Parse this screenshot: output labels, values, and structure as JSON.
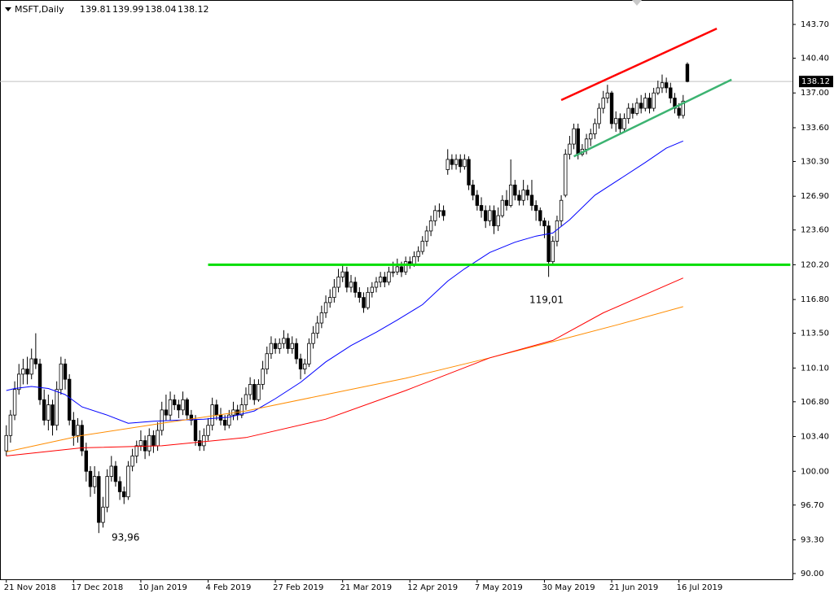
{
  "chart_data": {
    "type": "candlestick",
    "title": "MSFT,Daily",
    "xlim": [
      -1.5,
      187
    ],
    "ylim": [
      89.44,
      146.09
    ],
    "xticks": [
      {
        "value": 0,
        "label": "21 Nov 2018"
      },
      {
        "value": 16,
        "label": "17 Dec 2018"
      },
      {
        "value": 32,
        "label": "10 Jan 2019"
      },
      {
        "value": 48,
        "label": "4 Feb 2019"
      },
      {
        "value": 64,
        "label": "27 Feb 2019"
      },
      {
        "value": 80,
        "label": "21 Mar 2019"
      },
      {
        "value": 96,
        "label": "12 Apr 2019"
      },
      {
        "value": 112,
        "label": "7 May 2019"
      },
      {
        "value": 128,
        "label": "30 May 2019"
      },
      {
        "value": 144,
        "label": "21 Jun 2019"
      },
      {
        "value": 160,
        "label": "16 Jul 2019"
      }
    ],
    "yticks": [
      {
        "value": 90,
        "label": "90.00"
      },
      {
        "value": 93.3,
        "label": "93.30"
      },
      {
        "value": 96.7,
        "label": "96.70"
      },
      {
        "value": 100,
        "label": "100.00"
      },
      {
        "value": 103.4,
        "label": "103.40"
      },
      {
        "value": 106.8,
        "label": "106.80"
      },
      {
        "value": 110.1,
        "label": "110.10"
      },
      {
        "value": 113.5,
        "label": "113.50"
      },
      {
        "value": 116.8,
        "label": "116.80"
      },
      {
        "value": 120.2,
        "label": "120.20"
      },
      {
        "value": 123.6,
        "label": "123.60"
      },
      {
        "value": 126.9,
        "label": "126.90"
      },
      {
        "value": 130.3,
        "label": "130.30"
      },
      {
        "value": 133.6,
        "label": "133.60"
      },
      {
        "value": 137,
        "label": "137.00"
      },
      {
        "value": 140.4,
        "label": "140.40"
      },
      {
        "value": 143.7,
        "label": "143.70"
      }
    ],
    "up_color": "#ffffff",
    "down_color": "#000000",
    "wick_color": "#000000",
    "ohlc": [
      [
        102,
        104.5,
        101.5,
        103.5
      ],
      [
        103.5,
        106,
        102.8,
        105.5
      ],
      [
        105.5,
        108.8,
        105,
        108
      ],
      [
        108,
        110.5,
        107.5,
        109.5
      ],
      [
        109.5,
        111,
        108.5,
        110
      ],
      [
        110,
        111.2,
        108.5,
        109.5
      ],
      [
        109.5,
        112,
        109,
        111
      ],
      [
        111,
        113.5,
        110,
        110.5
      ],
      [
        110.5,
        111,
        106.5,
        107
      ],
      [
        107,
        108,
        104.5,
        105
      ],
      [
        105,
        107.5,
        104,
        106.5
      ],
      [
        106.5,
        107,
        103.5,
        104.5
      ],
      [
        104.5,
        108.8,
        104,
        108
      ],
      [
        108,
        111.2,
        107.5,
        110.5
      ],
      [
        110.5,
        111,
        108,
        109
      ],
      [
        109,
        109.5,
        104.5,
        105
      ],
      [
        105,
        105.8,
        102.5,
        103.5
      ],
      [
        103.5,
        105.2,
        102.8,
        104.5
      ],
      [
        104.5,
        105,
        101.5,
        102
      ],
      [
        102,
        102.8,
        99,
        100
      ],
      [
        100,
        100.5,
        97.5,
        98.5
      ],
      [
        98.5,
        100.5,
        97.8,
        99.5
      ],
      [
        99.5,
        100,
        93.96,
        95
      ],
      [
        95,
        97.5,
        94.5,
        96.5
      ],
      [
        96.5,
        100.2,
        96,
        99.5
      ],
      [
        99.5,
        101.5,
        99,
        100.5
      ],
      [
        100.5,
        101,
        98.5,
        99
      ],
      [
        99,
        99.5,
        97.2,
        98
      ],
      [
        98,
        98.5,
        96.8,
        97.5
      ],
      [
        97.5,
        101,
        97.2,
        100.5
      ],
      [
        100.5,
        102.2,
        100,
        101.5
      ],
      [
        101.5,
        103,
        100.8,
        102.5
      ],
      [
        102.5,
        104,
        102,
        103
      ],
      [
        103,
        103.5,
        101.2,
        102
      ],
      [
        102,
        104.2,
        101.5,
        103.5
      ],
      [
        103.5,
        104,
        101.8,
        102.5
      ],
      [
        102.5,
        104.8,
        102,
        104
      ],
      [
        104,
        106.8,
        103.5,
        106
      ],
      [
        106,
        107.5,
        105,
        105.5
      ],
      [
        105.5,
        107.8,
        105,
        107
      ],
      [
        107,
        107.5,
        106,
        106.5
      ],
      [
        106.5,
        107,
        105.2,
        106
      ],
      [
        106,
        107.8,
        105.5,
        107
      ],
      [
        107,
        107.2,
        105,
        105.5
      ],
      [
        105.5,
        106,
        104.5,
        105
      ],
      [
        105,
        105.5,
        102.5,
        103
      ],
      [
        103,
        104,
        102,
        102.5
      ],
      [
        102.5,
        104.2,
        102,
        103.5
      ],
      [
        103.5,
        105.2,
        103,
        104.5
      ],
      [
        104.5,
        107.2,
        104,
        106.5
      ],
      [
        106.5,
        107,
        105,
        105.5
      ],
      [
        105.5,
        106.2,
        104.5,
        105
      ],
      [
        105,
        105.5,
        104,
        104.5
      ],
      [
        104.5,
        106,
        104.2,
        105.5
      ],
      [
        105.5,
        106.8,
        105,
        106
      ],
      [
        106,
        106.5,
        105,
        105.5
      ],
      [
        105.5,
        107.2,
        105.2,
        106.5
      ],
      [
        106.5,
        108.2,
        106,
        107.5
      ],
      [
        107.5,
        109.2,
        107,
        108.5
      ],
      [
        108.5,
        109,
        106.5,
        107
      ],
      [
        107,
        109,
        106.8,
        108.5
      ],
      [
        108.5,
        110.8,
        108,
        110
      ],
      [
        110,
        112.2,
        109.5,
        111.5
      ],
      [
        111.5,
        113.2,
        111,
        112.5
      ],
      [
        112.5,
        113,
        111.5,
        112
      ],
      [
        112,
        113,
        111.5,
        112.5
      ],
      [
        112.5,
        113.8,
        112,
        113
      ],
      [
        113,
        113.5,
        111.5,
        112
      ],
      [
        112,
        113.2,
        111.5,
        112.5
      ],
      [
        112.5,
        113,
        110.5,
        111
      ],
      [
        111,
        111.5,
        109,
        110
      ],
      [
        110,
        111,
        109.5,
        110.5
      ],
      [
        110.5,
        113,
        110.2,
        112.5
      ],
      [
        112.5,
        114.2,
        112,
        113.5
      ],
      [
        113.5,
        115.2,
        113,
        114.5
      ],
      [
        114.5,
        116.2,
        114,
        115.5
      ],
      [
        115.5,
        117.2,
        115,
        116.5
      ],
      [
        116.5,
        117.8,
        116,
        117
      ],
      [
        117,
        118.8,
        116.5,
        118
      ],
      [
        118,
        119.8,
        117.5,
        119
      ],
      [
        119,
        120.2,
        118.5,
        119.5
      ],
      [
        119.5,
        120,
        117.5,
        118
      ],
      [
        118,
        119.2,
        117.5,
        118.5
      ],
      [
        118.5,
        119,
        117,
        117.5
      ],
      [
        117.5,
        118,
        116.5,
        117
      ],
      [
        117,
        117.5,
        115.5,
        116
      ],
      [
        116,
        118,
        115.8,
        117.5
      ],
      [
        117.5,
        118.5,
        117,
        118
      ],
      [
        118,
        119,
        117.5,
        118.5
      ],
      [
        118.5,
        119.5,
        118,
        119
      ],
      [
        119,
        119.5,
        118,
        118.5
      ],
      [
        118.5,
        120,
        118.2,
        119.5
      ],
      [
        119.5,
        120.5,
        119,
        119.5
      ],
      [
        119.5,
        120.8,
        119.2,
        120
      ],
      [
        120,
        120.5,
        119,
        119.5
      ],
      [
        119.5,
        121,
        119.2,
        120.5
      ],
      [
        120.5,
        121,
        119.8,
        120.2
      ],
      [
        120.2,
        121.5,
        120,
        121
      ],
      [
        121,
        122,
        120.5,
        121.5
      ],
      [
        121.5,
        123,
        121.2,
        122.5
      ],
      [
        122.5,
        124,
        122,
        123.5
      ],
      [
        123.5,
        125,
        123,
        124.5
      ],
      [
        124.5,
        126,
        124,
        125.5
      ],
      [
        125.5,
        126.2,
        124.8,
        125.5
      ],
      [
        125.5,
        126,
        124.5,
        125
      ],
      [
        129.5,
        131.5,
        129,
        130.5
      ],
      [
        130.5,
        131,
        129.5,
        130
      ],
      [
        130,
        131,
        129.5,
        130.5
      ],
      [
        130.5,
        131,
        129.2,
        129.8
      ],
      [
        129.8,
        131,
        129.5,
        130.5
      ],
      [
        130.5,
        130.8,
        127.5,
        128
      ],
      [
        128,
        128.5,
        126.5,
        127
      ],
      [
        127,
        127.5,
        125.5,
        126
      ],
      [
        126,
        126.8,
        124.8,
        125.5
      ],
      [
        125.5,
        126,
        123.8,
        124.5
      ],
      [
        124.5,
        126,
        124,
        125.5
      ],
      [
        125.5,
        126,
        123.2,
        124
      ],
      [
        124,
        125.8,
        123.5,
        125
      ],
      [
        125,
        127,
        124.8,
        126.5
      ],
      [
        126.5,
        127.5,
        125.5,
        126
      ],
      [
        126,
        130.5,
        125.8,
        128
      ],
      [
        128,
        128.5,
        126.5,
        127
      ],
      [
        127,
        127.5,
        126,
        126.5
      ],
      [
        126.5,
        128.5,
        126,
        127.5
      ],
      [
        127.5,
        128,
        126.5,
        127
      ],
      [
        127,
        128.5,
        125.5,
        126
      ],
      [
        126,
        126.5,
        124.5,
        125.5
      ],
      [
        125.5,
        125.8,
        124,
        124.5
      ],
      [
        124.5,
        124.8,
        122.8,
        124
      ],
      [
        124,
        124.5,
        119.01,
        120.5
      ],
      [
        120.5,
        123,
        120.2,
        122.5
      ],
      [
        122.5,
        125,
        122,
        124.5
      ],
      [
        124.5,
        127,
        124,
        126.5
      ],
      [
        127,
        131.5,
        126.8,
        131
      ],
      [
        131,
        132.8,
        130.5,
        132
      ],
      [
        132,
        134,
        131.5,
        133.5
      ],
      [
        133.5,
        134,
        130.5,
        131
      ],
      [
        131,
        132,
        130.8,
        131.5
      ],
      [
        131.5,
        133,
        131,
        132.5
      ],
      [
        132.5,
        133.5,
        131.8,
        133
      ],
      [
        133,
        134.5,
        132.5,
        134
      ],
      [
        134,
        136,
        133.5,
        135.5
      ],
      [
        135.5,
        137.2,
        135,
        136.5
      ],
      [
        136.5,
        137.8,
        136,
        137
      ],
      [
        137,
        137.2,
        133.5,
        134
      ],
      [
        134,
        135.2,
        133.2,
        134.5
      ],
      [
        134.5,
        135,
        133,
        133.5
      ],
      [
        133.5,
        135,
        133.2,
        134.5
      ],
      [
        134.5,
        136,
        134,
        135.5
      ],
      [
        135.5,
        136,
        134.5,
        135
      ],
      [
        135,
        136.5,
        134.8,
        136
      ],
      [
        136,
        136.8,
        135,
        135.5
      ],
      [
        135.5,
        137,
        135.2,
        136.5
      ],
      [
        136.5,
        137,
        135,
        135.5
      ],
      [
        135.5,
        137.5,
        135.2,
        137
      ],
      [
        137,
        138.2,
        136.8,
        137.5
      ],
      [
        137.5,
        138.8,
        137,
        138
      ],
      [
        138,
        138.5,
        137,
        137.5
      ],
      [
        137.5,
        138,
        136,
        136.5
      ],
      [
        136.5,
        137,
        135,
        135.5
      ],
      [
        135.5,
        136,
        134.5,
        134.8
      ],
      [
        134.8,
        136.8,
        134.5,
        136.2
      ],
      [
        139.81,
        139.99,
        138.04,
        138.12
      ]
    ],
    "overlays": [
      {
        "color": "#0000ff",
        "width": 1,
        "x": [
          0,
          2,
          6,
          10,
          14,
          18,
          24,
          29,
          35,
          41,
          47,
          53,
          59,
          64,
          70,
          76,
          82,
          88,
          93,
          99,
          105,
          109,
          115,
          121,
          126,
          130,
          134,
          140,
          146,
          152,
          157,
          161
        ],
        "y": [
          107.9,
          108.1,
          108.3,
          108.1,
          107.5,
          106.3,
          105.5,
          104.7,
          104.9,
          105,
          105.1,
          105.3,
          105.9,
          107.1,
          108.7,
          110.7,
          112.3,
          113.6,
          114.8,
          116.3,
          118.6,
          119.8,
          121.4,
          122.4,
          123,
          123.3,
          124.6,
          127,
          128.6,
          130.2,
          131.6,
          132.3
        ]
      },
      {
        "color": "#ff8c00",
        "width": 1,
        "x": [
          0,
          18,
          37,
          57,
          76,
          95,
          115,
          134,
          146,
          161
        ],
        "y": [
          101.9,
          103.5,
          104.7,
          105.9,
          107.5,
          109.1,
          111.1,
          113.1,
          114.4,
          116.1
        ]
      },
      {
        "color": "#ff0000",
        "width": 1,
        "x": [
          0,
          18,
          37,
          57,
          76,
          95,
          115,
          130,
          142,
          161
        ],
        "y": [
          101.5,
          102.3,
          102.5,
          103.3,
          105.1,
          107.9,
          111.1,
          112.8,
          115.5,
          118.9
        ]
      },
      {
        "color": "#ff0000",
        "width": 2.5,
        "x": [
          132,
          169
        ],
        "y": [
          136.3,
          143.3
        ]
      },
      {
        "color": "#3cb371",
        "width": 2.5,
        "x": [
          135,
          172.5
        ],
        "y": [
          130.8,
          138.3
        ]
      },
      {
        "color": "#00dd00",
        "width": 3,
        "x": [
          48,
          186.5
        ],
        "y": [
          120.2,
          120.2
        ]
      }
    ],
    "annotations": [
      {
        "text": "93,96",
        "color": "#0000ff"
      },
      {
        "text": "119,01",
        "color": "#0000ff"
      }
    ]
  }
}
